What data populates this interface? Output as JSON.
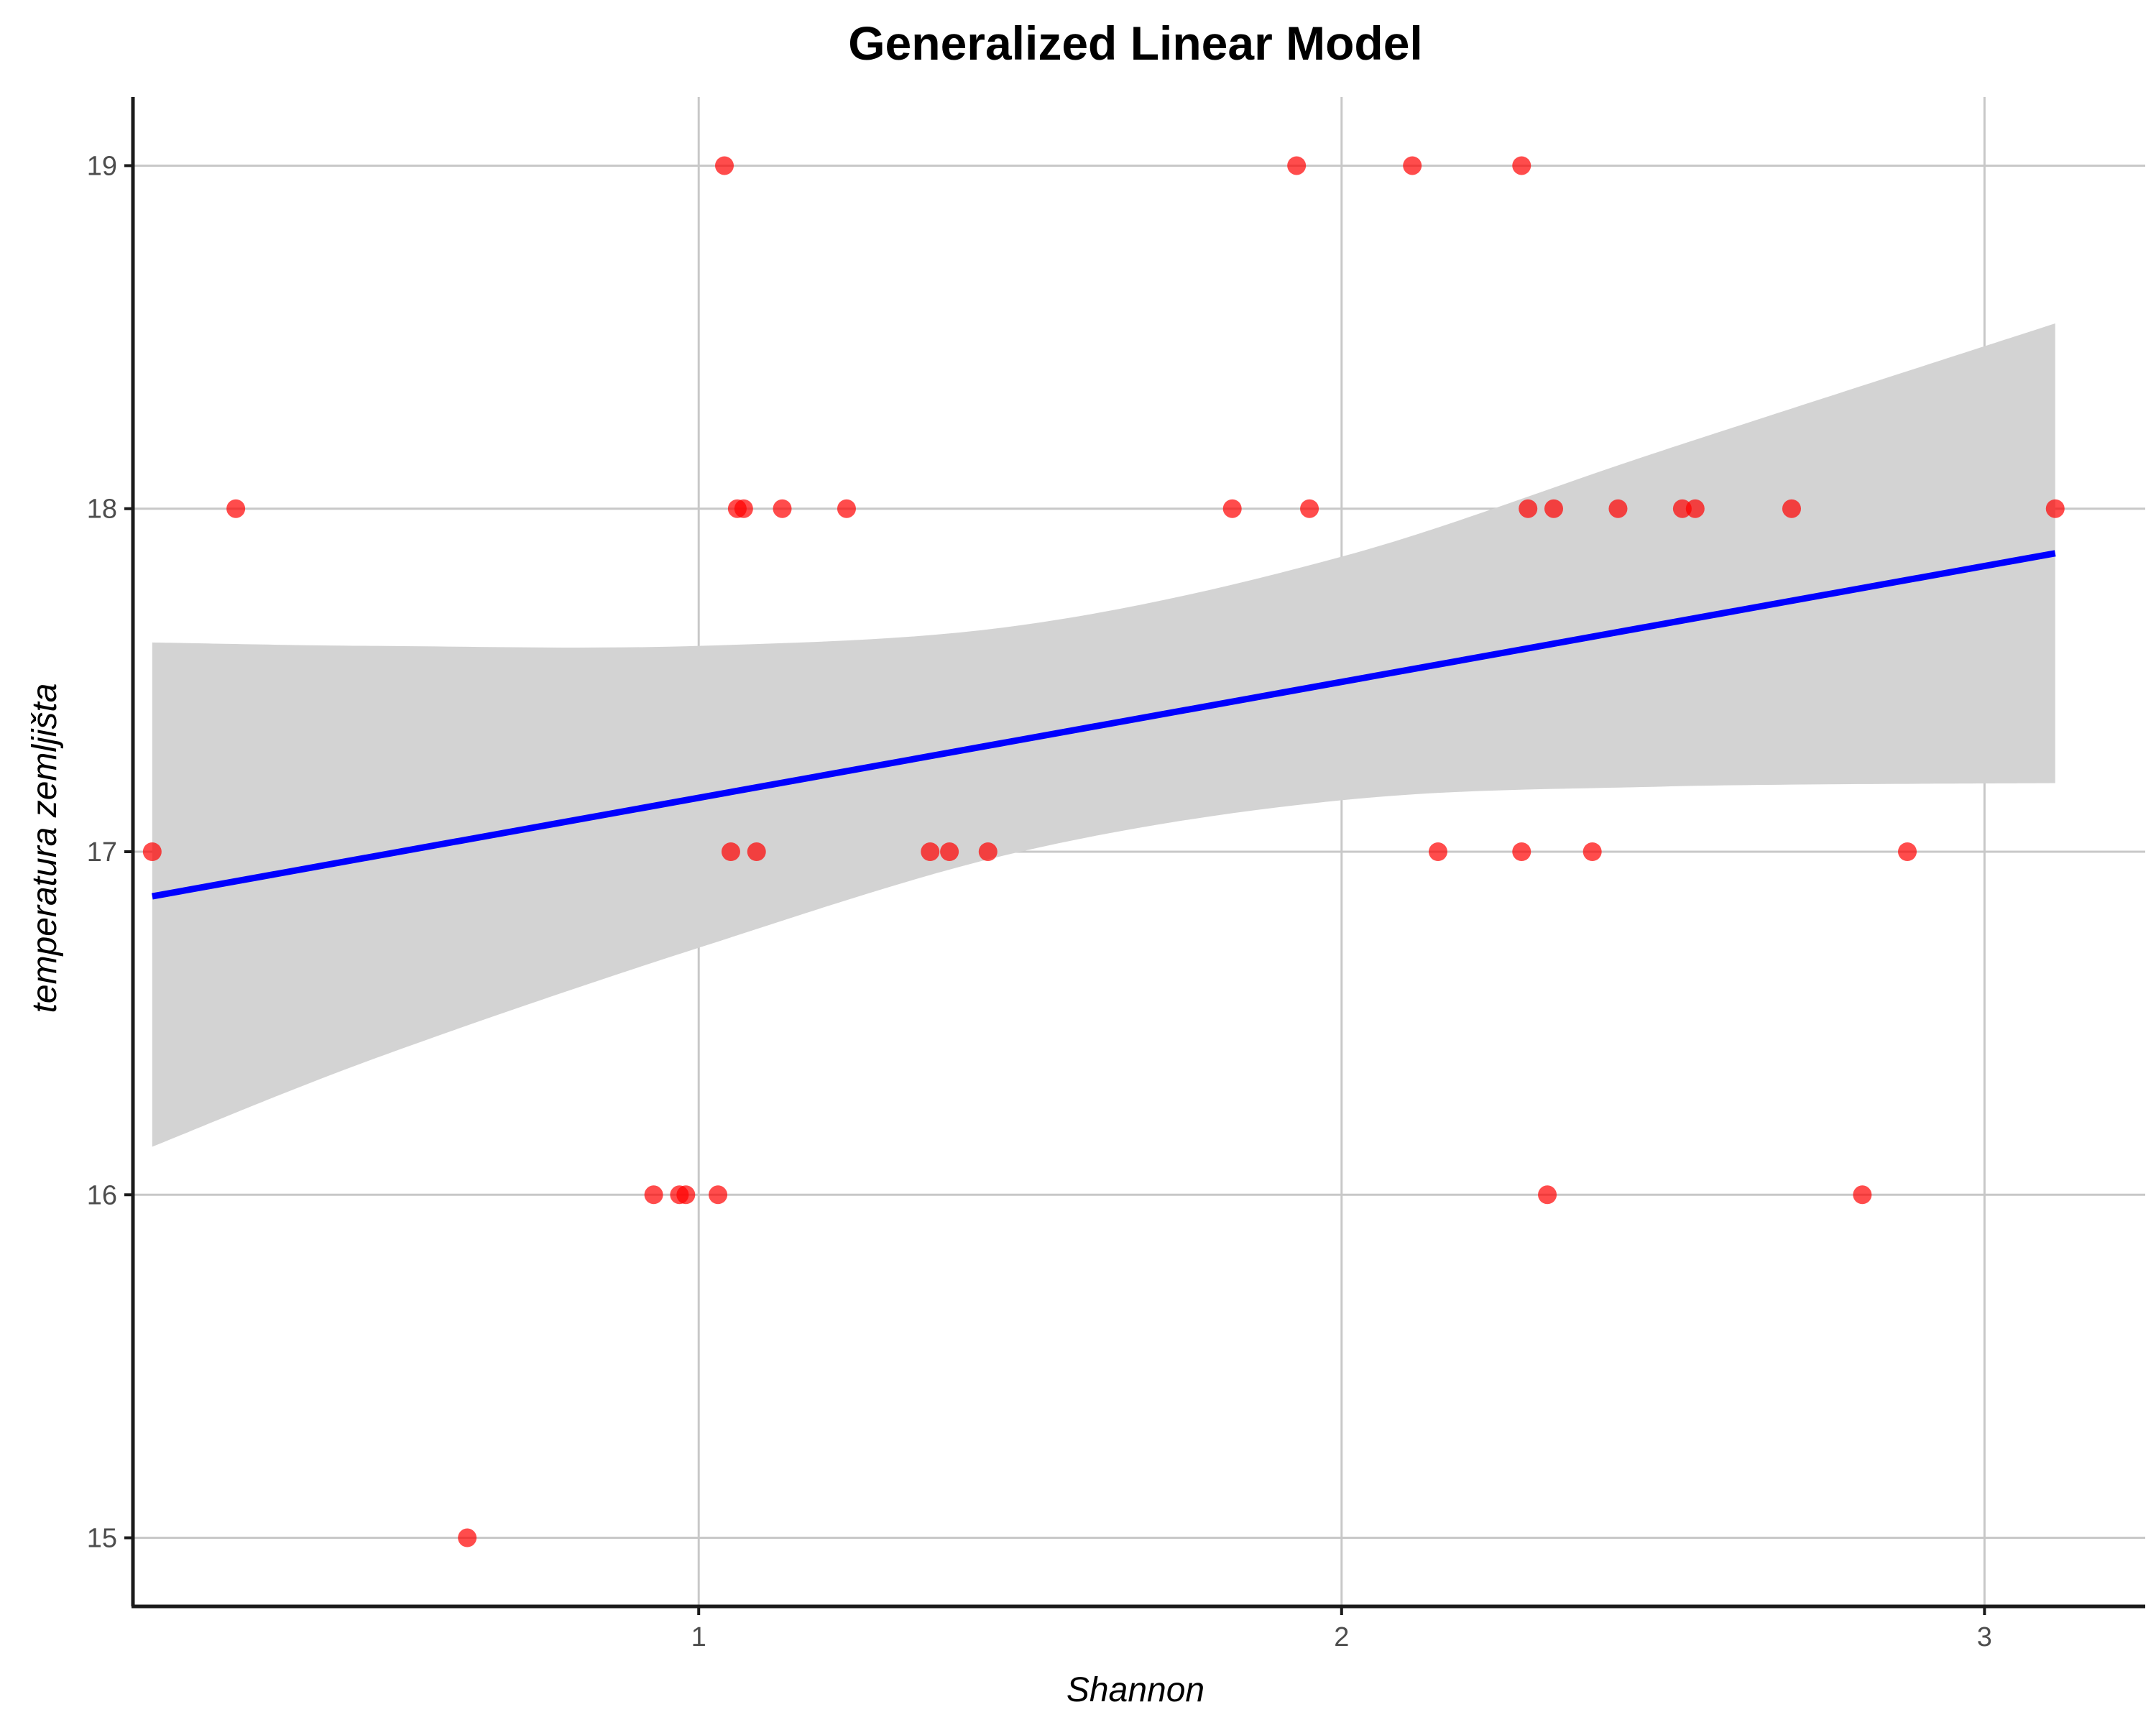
{
  "chart_data": {
    "type": "scatter",
    "title": "Generalized Linear Model",
    "xlabel": "Shannon",
    "ylabel": "temperatura zemljišta",
    "xlim": [
      0.12,
      3.25
    ],
    "ylim": [
      14.8,
      19.2
    ],
    "x_ticks": [
      1,
      2,
      3
    ],
    "y_ticks": [
      15,
      16,
      17,
      18,
      19
    ],
    "grid": true,
    "legend": "none",
    "colors": {
      "points": "#ff0000",
      "fit_line": "#0000ff",
      "ribbon": "#d3d3d3",
      "grid": "#c8c8c8",
      "axis": "#1a1a1a"
    },
    "points": [
      {
        "x": 0.15,
        "y": 17
      },
      {
        "x": 0.28,
        "y": 18
      },
      {
        "x": 0.64,
        "y": 15
      },
      {
        "x": 0.93,
        "y": 16
      },
      {
        "x": 0.97,
        "y": 16
      },
      {
        "x": 0.98,
        "y": 16
      },
      {
        "x": 1.03,
        "y": 16
      },
      {
        "x": 1.04,
        "y": 19
      },
      {
        "x": 1.05,
        "y": 17
      },
      {
        "x": 1.06,
        "y": 18
      },
      {
        "x": 1.07,
        "y": 18
      },
      {
        "x": 1.09,
        "y": 17
      },
      {
        "x": 1.13,
        "y": 18
      },
      {
        "x": 1.23,
        "y": 18
      },
      {
        "x": 1.36,
        "y": 17
      },
      {
        "x": 1.39,
        "y": 17
      },
      {
        "x": 1.45,
        "y": 17
      },
      {
        "x": 1.83,
        "y": 18
      },
      {
        "x": 1.93,
        "y": 19
      },
      {
        "x": 1.95,
        "y": 18
      },
      {
        "x": 2.11,
        "y": 19
      },
      {
        "x": 2.15,
        "y": 17
      },
      {
        "x": 2.28,
        "y": 19
      },
      {
        "x": 2.28,
        "y": 17
      },
      {
        "x": 2.29,
        "y": 18
      },
      {
        "x": 2.32,
        "y": 16
      },
      {
        "x": 2.33,
        "y": 18
      },
      {
        "x": 2.39,
        "y": 17
      },
      {
        "x": 2.43,
        "y": 18
      },
      {
        "x": 2.53,
        "y": 18
      },
      {
        "x": 2.55,
        "y": 18
      },
      {
        "x": 2.7,
        "y": 18
      },
      {
        "x": 2.81,
        "y": 16
      },
      {
        "x": 2.88,
        "y": 17
      },
      {
        "x": 3.11,
        "y": 18
      }
    ],
    "fit_line": [
      {
        "x": 0.15,
        "y": 16.87
      },
      {
        "x": 3.11,
        "y": 17.87
      }
    ],
    "confidence_band": [
      {
        "x": 0.15,
        "lower": 16.14,
        "upper": 17.61
      },
      {
        "x": 0.5,
        "lower": 16.4,
        "upper": 17.6
      },
      {
        "x": 1.0,
        "lower": 16.72,
        "upper": 17.6
      },
      {
        "x": 1.5,
        "lower": 17.0,
        "upper": 17.66
      },
      {
        "x": 2.0,
        "lower": 17.15,
        "upper": 17.86
      },
      {
        "x": 2.5,
        "lower": 17.19,
        "upper": 18.17
      },
      {
        "x": 3.11,
        "lower": 17.2,
        "upper": 18.54
      }
    ]
  }
}
